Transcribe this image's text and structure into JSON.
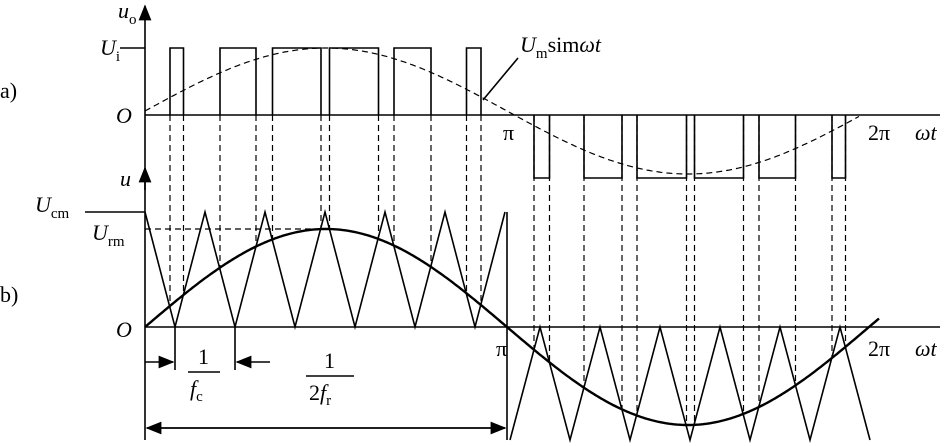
{
  "panel_a": {
    "label": "a)",
    "y_axis": {
      "symbol": "u",
      "subscript": "o"
    },
    "level": {
      "symbol": "U",
      "subscript": "i"
    },
    "origin": "O",
    "pi": "π",
    "two_pi": "2π",
    "x_axis": "ωt",
    "curve_label": {
      "symbol": "U",
      "subscript": "m",
      "function": "sim",
      "argument": "ωt"
    }
  },
  "panel_b": {
    "label": "b)",
    "y_axis": "u",
    "carrier_peak": {
      "symbol": "U",
      "subscript": "cm"
    },
    "reference_peak": {
      "symbol": "U",
      "subscript": "rm"
    },
    "origin": "O",
    "pi": "π",
    "two_pi": "2π",
    "x_axis": "ωt",
    "carrier_period": {
      "numerator": "1",
      "denominator": {
        "symbol": "f",
        "subscript": "c"
      }
    },
    "reference_half_period": {
      "numerator": "1",
      "denominator": {
        "coefficient": "2",
        "symbol": "f",
        "subscript": "r"
      }
    }
  }
}
